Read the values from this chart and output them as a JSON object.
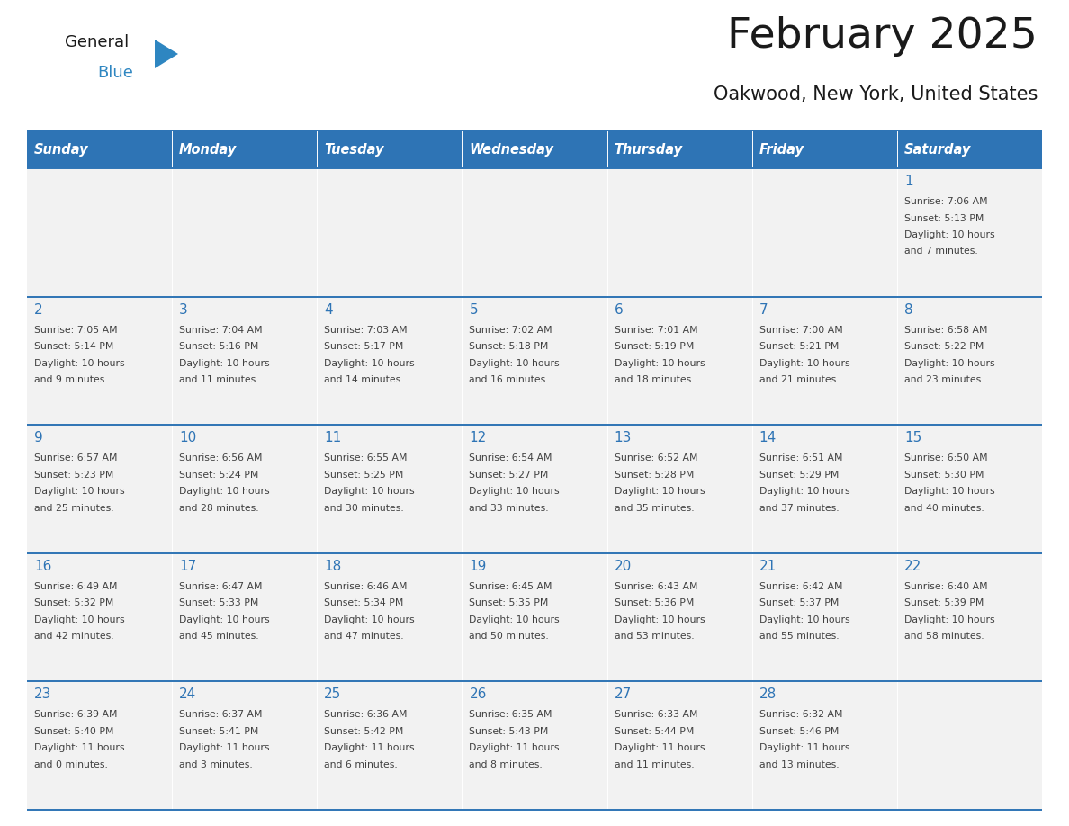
{
  "title": "February 2025",
  "subtitle": "Oakwood, New York, United States",
  "header_bg": "#2e74b5",
  "header_text_color": "#ffffff",
  "cell_bg": "#f2f2f2",
  "border_color": "#2e74b5",
  "day_number_color": "#2e74b5",
  "text_color": "#404040",
  "days_of_week": [
    "Sunday",
    "Monday",
    "Tuesday",
    "Wednesday",
    "Thursday",
    "Friday",
    "Saturday"
  ],
  "weeks": [
    [
      {
        "day": null,
        "info": null
      },
      {
        "day": null,
        "info": null
      },
      {
        "day": null,
        "info": null
      },
      {
        "day": null,
        "info": null
      },
      {
        "day": null,
        "info": null
      },
      {
        "day": null,
        "info": null
      },
      {
        "day": "1",
        "info": "Sunrise: 7:06 AM\nSunset: 5:13 PM\nDaylight: 10 hours\nand 7 minutes."
      }
    ],
    [
      {
        "day": "2",
        "info": "Sunrise: 7:05 AM\nSunset: 5:14 PM\nDaylight: 10 hours\nand 9 minutes."
      },
      {
        "day": "3",
        "info": "Sunrise: 7:04 AM\nSunset: 5:16 PM\nDaylight: 10 hours\nand 11 minutes."
      },
      {
        "day": "4",
        "info": "Sunrise: 7:03 AM\nSunset: 5:17 PM\nDaylight: 10 hours\nand 14 minutes."
      },
      {
        "day": "5",
        "info": "Sunrise: 7:02 AM\nSunset: 5:18 PM\nDaylight: 10 hours\nand 16 minutes."
      },
      {
        "day": "6",
        "info": "Sunrise: 7:01 AM\nSunset: 5:19 PM\nDaylight: 10 hours\nand 18 minutes."
      },
      {
        "day": "7",
        "info": "Sunrise: 7:00 AM\nSunset: 5:21 PM\nDaylight: 10 hours\nand 21 minutes."
      },
      {
        "day": "8",
        "info": "Sunrise: 6:58 AM\nSunset: 5:22 PM\nDaylight: 10 hours\nand 23 minutes."
      }
    ],
    [
      {
        "day": "9",
        "info": "Sunrise: 6:57 AM\nSunset: 5:23 PM\nDaylight: 10 hours\nand 25 minutes."
      },
      {
        "day": "10",
        "info": "Sunrise: 6:56 AM\nSunset: 5:24 PM\nDaylight: 10 hours\nand 28 minutes."
      },
      {
        "day": "11",
        "info": "Sunrise: 6:55 AM\nSunset: 5:25 PM\nDaylight: 10 hours\nand 30 minutes."
      },
      {
        "day": "12",
        "info": "Sunrise: 6:54 AM\nSunset: 5:27 PM\nDaylight: 10 hours\nand 33 minutes."
      },
      {
        "day": "13",
        "info": "Sunrise: 6:52 AM\nSunset: 5:28 PM\nDaylight: 10 hours\nand 35 minutes."
      },
      {
        "day": "14",
        "info": "Sunrise: 6:51 AM\nSunset: 5:29 PM\nDaylight: 10 hours\nand 37 minutes."
      },
      {
        "day": "15",
        "info": "Sunrise: 6:50 AM\nSunset: 5:30 PM\nDaylight: 10 hours\nand 40 minutes."
      }
    ],
    [
      {
        "day": "16",
        "info": "Sunrise: 6:49 AM\nSunset: 5:32 PM\nDaylight: 10 hours\nand 42 minutes."
      },
      {
        "day": "17",
        "info": "Sunrise: 6:47 AM\nSunset: 5:33 PM\nDaylight: 10 hours\nand 45 minutes."
      },
      {
        "day": "18",
        "info": "Sunrise: 6:46 AM\nSunset: 5:34 PM\nDaylight: 10 hours\nand 47 minutes."
      },
      {
        "day": "19",
        "info": "Sunrise: 6:45 AM\nSunset: 5:35 PM\nDaylight: 10 hours\nand 50 minutes."
      },
      {
        "day": "20",
        "info": "Sunrise: 6:43 AM\nSunset: 5:36 PM\nDaylight: 10 hours\nand 53 minutes."
      },
      {
        "day": "21",
        "info": "Sunrise: 6:42 AM\nSunset: 5:37 PM\nDaylight: 10 hours\nand 55 minutes."
      },
      {
        "day": "22",
        "info": "Sunrise: 6:40 AM\nSunset: 5:39 PM\nDaylight: 10 hours\nand 58 minutes."
      }
    ],
    [
      {
        "day": "23",
        "info": "Sunrise: 6:39 AM\nSunset: 5:40 PM\nDaylight: 11 hours\nand 0 minutes."
      },
      {
        "day": "24",
        "info": "Sunrise: 6:37 AM\nSunset: 5:41 PM\nDaylight: 11 hours\nand 3 minutes."
      },
      {
        "day": "25",
        "info": "Sunrise: 6:36 AM\nSunset: 5:42 PM\nDaylight: 11 hours\nand 6 minutes."
      },
      {
        "day": "26",
        "info": "Sunrise: 6:35 AM\nSunset: 5:43 PM\nDaylight: 11 hours\nand 8 minutes."
      },
      {
        "day": "27",
        "info": "Sunrise: 6:33 AM\nSunset: 5:44 PM\nDaylight: 11 hours\nand 11 minutes."
      },
      {
        "day": "28",
        "info": "Sunrise: 6:32 AM\nSunset: 5:46 PM\nDaylight: 11 hours\nand 13 minutes."
      },
      {
        "day": null,
        "info": null
      }
    ]
  ]
}
